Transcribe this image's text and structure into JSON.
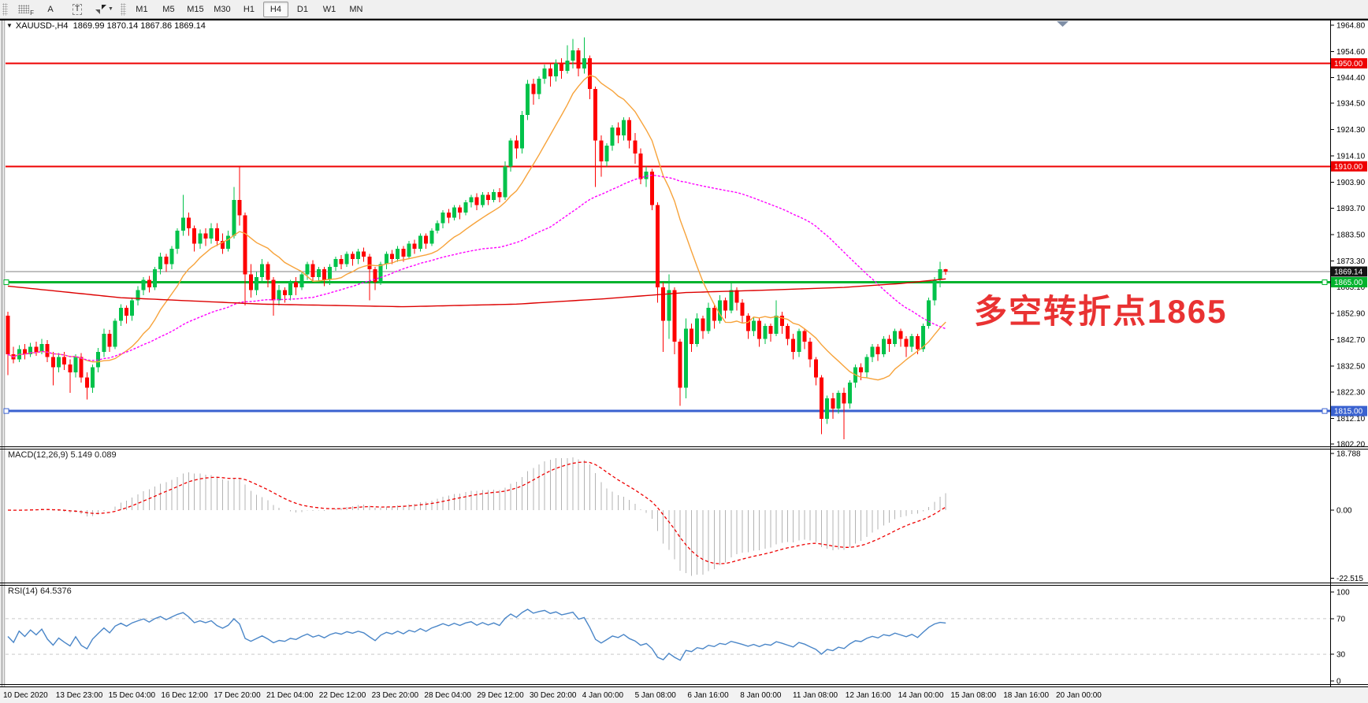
{
  "toolbar": {
    "dock_label": "F",
    "annotate_label": "A",
    "text_label": "T",
    "timeframes": [
      "M1",
      "M5",
      "M15",
      "M30",
      "H1",
      "H4",
      "D1",
      "W1",
      "MN"
    ],
    "active_timeframe": "H4"
  },
  "chart": {
    "title": "XAUUSD-,H4",
    "ohlc": "1869.99 1870.14 1867.86 1869.14",
    "annotation": "多空转折点1865",
    "y_ticks": [
      "1964.80",
      "1954.60",
      "1944.40",
      "1934.50",
      "1924.30",
      "1914.10",
      "1903.90",
      "1893.70",
      "1883.50",
      "1873.30",
      "1863.10",
      "1852.90",
      "1842.70",
      "1832.50",
      "1822.30",
      "1812.10",
      "1802.20"
    ],
    "x_labels": [
      "10 Dec 2020",
      "13 Dec 23:00",
      "15 Dec 04:00",
      "16 Dec 12:00",
      "17 Dec 20:00",
      "21 Dec 04:00",
      "22 Dec 12:00",
      "23 Dec 20:00",
      "28 Dec 04:00",
      "29 Dec 12:00",
      "30 Dec 20:00",
      "4 Jan 00:00",
      "5 Jan 08:00",
      "6 Jan 16:00",
      "8 Jan 00:00",
      "11 Jan 08:00",
      "12 Jan 16:00",
      "14 Jan 00:00",
      "15 Jan 08:00",
      "18 Jan 16:00",
      "20 Jan 00:00"
    ],
    "levels": [
      {
        "label": "1950.00",
        "value": 1950.0,
        "color": "#ee0000",
        "thickness": 2,
        "badge": "#ee0000",
        "handles": false
      },
      {
        "label": "1910.00",
        "value": 1910.0,
        "color": "#ee0000",
        "thickness": 2,
        "badge": "#ee0000",
        "handles": false
      },
      {
        "label": "1869.14",
        "value": 1869.14,
        "color": "#808080",
        "thickness": 1,
        "badge": "#141414",
        "handles": false
      },
      {
        "label": "1865.00",
        "value": 1865.0,
        "color": "#00b32d",
        "thickness": 3,
        "badge": "#00b32d",
        "handles": true
      },
      {
        "label": "1815.00",
        "value": 1815.0,
        "color": "#3a62d0",
        "thickness": 3,
        "badge": "#3a62d0",
        "handles": true
      }
    ]
  },
  "indicators": {
    "macd": {
      "label": "MACD(12,26,9) 5.149 0.089",
      "fast": 12,
      "slow": 26,
      "signal": 9,
      "ticks": [
        {
          "label": "18.788",
          "value": 18.788
        },
        {
          "label": "0.00",
          "value": 0
        },
        {
          "label": "-22.515",
          "value": -22.515
        }
      ]
    },
    "rsi": {
      "label": "RSI(14) 64.5376",
      "period": 14,
      "levels": [
        70,
        30
      ],
      "ticks": [
        {
          "label": "100",
          "value": 100
        },
        {
          "label": "70",
          "value": 70
        },
        {
          "label": "30",
          "value": 30
        },
        {
          "label": "0",
          "value": 0
        }
      ]
    }
  },
  "colors": {
    "bull": "#00c24a",
    "bear": "#fe0000",
    "ma_fast": "#f7a33b",
    "ma_mid": "#ff00ff",
    "ma_slow": "#dd0000",
    "macd_hist": "#b3b3b3",
    "macd_signal": "#ee0000",
    "rsi_line": "#4a86c8",
    "axis_text": "#000000",
    "annotation": "#e93232"
  },
  "chart_data": {
    "type": "candlestick",
    "symbol": "XAUUSD-",
    "timeframe": "H4",
    "ma_fast_period": 13,
    "ma_mid_period": 55,
    "ma_slow_points": [
      [
        0,
        1863.5
      ],
      [
        20,
        1859
      ],
      [
        45,
        1856.5
      ],
      [
        70,
        1855.5
      ],
      [
        90,
        1856.5
      ],
      [
        105,
        1858.5
      ],
      [
        120,
        1861
      ],
      [
        135,
        1862
      ],
      [
        148,
        1863
      ],
      [
        158,
        1864.5
      ],
      [
        166,
        1866.3
      ]
    ],
    "candles": [
      [
        1852,
        1853.5,
        1829,
        1837
      ],
      [
        1837,
        1840,
        1833.5,
        1835
      ],
      [
        1835,
        1840.5,
        1834,
        1839
      ],
      [
        1839,
        1841,
        1835,
        1837
      ],
      [
        1837,
        1841.5,
        1836,
        1840
      ],
      [
        1840,
        1842,
        1836.5,
        1838
      ],
      [
        1838,
        1843,
        1837,
        1841
      ],
      [
        1841,
        1842.5,
        1834,
        1836
      ],
      [
        1836,
        1838,
        1825,
        1832
      ],
      [
        1832,
        1837.5,
        1830,
        1836
      ],
      [
        1836,
        1838,
        1831,
        1833
      ],
      [
        1833,
        1835,
        1822,
        1830
      ],
      [
        1830,
        1837,
        1828,
        1836
      ],
      [
        1836,
        1837.5,
        1826,
        1828
      ],
      [
        1828,
        1830,
        1819.5,
        1824
      ],
      [
        1824,
        1833,
        1822,
        1832
      ],
      [
        1832,
        1839.5,
        1830,
        1838
      ],
      [
        1838,
        1847,
        1836,
        1845
      ],
      [
        1845,
        1846.5,
        1838,
        1840
      ],
      [
        1840,
        1851,
        1839,
        1850
      ],
      [
        1850,
        1856.5,
        1848,
        1855
      ],
      [
        1855,
        1856,
        1849,
        1852
      ],
      [
        1852,
        1859,
        1850,
        1858
      ],
      [
        1858,
        1863.5,
        1856,
        1862
      ],
      [
        1862,
        1867,
        1860,
        1866
      ],
      [
        1866,
        1867.5,
        1861,
        1863
      ],
      [
        1863,
        1871,
        1862,
        1870
      ],
      [
        1870,
        1876.5,
        1868,
        1875
      ],
      [
        1875,
        1876,
        1869,
        1872
      ],
      [
        1872,
        1879,
        1870,
        1878
      ],
      [
        1878,
        1886,
        1876,
        1885
      ],
      [
        1885,
        1899,
        1883,
        1890
      ],
      [
        1890,
        1892,
        1883,
        1886
      ],
      [
        1886,
        1887,
        1877,
        1880
      ],
      [
        1880,
        1885.5,
        1878,
        1884
      ],
      [
        1884,
        1886,
        1879,
        1882
      ],
      [
        1882,
        1888,
        1880,
        1886
      ],
      [
        1886,
        1888,
        1879,
        1881
      ],
      [
        1881,
        1884,
        1876,
        1878
      ],
      [
        1878,
        1885,
        1877,
        1883
      ],
      [
        1883,
        1902,
        1882,
        1897
      ],
      [
        1897,
        1910,
        1887,
        1891
      ],
      [
        1891,
        1892,
        1856,
        1868
      ],
      [
        1868,
        1872,
        1859,
        1862
      ],
      [
        1862,
        1869,
        1860,
        1867
      ],
      [
        1867,
        1874,
        1865,
        1872
      ],
      [
        1872,
        1873,
        1863,
        1866
      ],
      [
        1866,
        1867,
        1852,
        1858
      ],
      [
        1858,
        1864,
        1856,
        1862
      ],
      [
        1862,
        1863,
        1857,
        1860
      ],
      [
        1860,
        1866,
        1858,
        1865
      ],
      [
        1865,
        1867,
        1860,
        1863
      ],
      [
        1863,
        1869,
        1862,
        1868
      ],
      [
        1868,
        1873,
        1866,
        1872
      ],
      [
        1872,
        1873.5,
        1865,
        1867
      ],
      [
        1867,
        1871,
        1865.5,
        1870
      ],
      [
        1870,
        1871,
        1863.5,
        1866
      ],
      [
        1866,
        1872,
        1864,
        1871
      ],
      [
        1871,
        1875,
        1869.5,
        1874
      ],
      [
        1874,
        1875.5,
        1870,
        1872
      ],
      [
        1872,
        1877,
        1871,
        1876
      ],
      [
        1876,
        1877,
        1871.5,
        1874
      ],
      [
        1874,
        1878,
        1872,
        1877
      ],
      [
        1877,
        1878.5,
        1873,
        1875
      ],
      [
        1875,
        1876,
        1858,
        1870
      ],
      [
        1870,
        1871,
        1862,
        1865
      ],
      [
        1865,
        1873,
        1864,
        1872
      ],
      [
        1872,
        1877,
        1870,
        1876
      ],
      [
        1876,
        1877.5,
        1872,
        1874
      ],
      [
        1874,
        1879,
        1873,
        1878
      ],
      [
        1878,
        1879,
        1873,
        1875
      ],
      [
        1875,
        1881,
        1874,
        1880
      ],
      [
        1880,
        1881.5,
        1876,
        1878
      ],
      [
        1878,
        1884,
        1877,
        1883
      ],
      [
        1883,
        1884,
        1878,
        1880
      ],
      [
        1880,
        1886,
        1879,
        1885
      ],
      [
        1885,
        1889,
        1884,
        1888
      ],
      [
        1888,
        1893,
        1886,
        1892
      ],
      [
        1892,
        1893.5,
        1888,
        1890
      ],
      [
        1890,
        1895,
        1889,
        1894
      ],
      [
        1894,
        1895,
        1889.5,
        1892
      ],
      [
        1892,
        1897,
        1891,
        1896
      ],
      [
        1896,
        1899,
        1894,
        1898
      ],
      [
        1898,
        1899.5,
        1893,
        1895
      ],
      [
        1895,
        1900,
        1894,
        1899
      ],
      [
        1899,
        1900,
        1895,
        1897
      ],
      [
        1897,
        1901,
        1896,
        1900
      ],
      [
        1900,
        1901.5,
        1896,
        1898
      ],
      [
        1898,
        1912,
        1897,
        1910
      ],
      [
        1910,
        1921,
        1908,
        1920
      ],
      [
        1920,
        1922,
        1913,
        1917
      ],
      [
        1917,
        1931.5,
        1915,
        1930
      ],
      [
        1930,
        1943.5,
        1928,
        1942
      ],
      [
        1942,
        1944,
        1934,
        1938
      ],
      [
        1938,
        1945,
        1936,
        1944
      ],
      [
        1944,
        1949.5,
        1942,
        1948
      ],
      [
        1948,
        1950,
        1941,
        1945
      ],
      [
        1945,
        1951.5,
        1943,
        1950
      ],
      [
        1950,
        1952,
        1944,
        1947
      ],
      [
        1947,
        1957,
        1946,
        1951
      ],
      [
        1951,
        1959.5,
        1948,
        1955
      ],
      [
        1955,
        1956,
        1945,
        1948
      ],
      [
        1948,
        1960,
        1946,
        1952
      ],
      [
        1952,
        1953,
        1936,
        1940
      ],
      [
        1940,
        1941,
        1902,
        1920
      ],
      [
        1920,
        1922,
        1906,
        1912
      ],
      [
        1912,
        1919,
        1910,
        1918
      ],
      [
        1918,
        1926,
        1916,
        1925
      ],
      [
        1925,
        1927,
        1919,
        1922
      ],
      [
        1922,
        1929,
        1920,
        1928
      ],
      [
        1928,
        1929,
        1917,
        1920
      ],
      [
        1920,
        1923,
        1911,
        1915
      ],
      [
        1915,
        1917,
        1903,
        1905
      ],
      [
        1905,
        1910,
        1902,
        1908
      ],
      [
        1908,
        1909,
        1893,
        1895
      ],
      [
        1895,
        1896,
        1857,
        1863
      ],
      [
        1863,
        1865,
        1838,
        1850
      ],
      [
        1850,
        1868,
        1843,
        1862
      ],
      [
        1862,
        1863,
        1837,
        1842
      ],
      [
        1842,
        1843,
        1817,
        1824
      ],
      [
        1824,
        1851,
        1820,
        1847
      ],
      [
        1847,
        1849,
        1838,
        1841
      ],
      [
        1841,
        1853,
        1840,
        1851
      ],
      [
        1851,
        1852,
        1843,
        1846
      ],
      [
        1846,
        1857,
        1845,
        1855
      ],
      [
        1855,
        1856,
        1847,
        1850
      ],
      [
        1850,
        1860,
        1849,
        1858
      ],
      [
        1858,
        1859,
        1851,
        1854
      ],
      [
        1854,
        1864.5,
        1853,
        1862
      ],
      [
        1862,
        1863,
        1854,
        1857
      ],
      [
        1857,
        1858.5,
        1849,
        1852
      ],
      [
        1852,
        1853,
        1843,
        1846
      ],
      [
        1846,
        1851.5,
        1844,
        1850
      ],
      [
        1850,
        1851,
        1840,
        1843
      ],
      [
        1843,
        1849,
        1841,
        1848
      ],
      [
        1848,
        1849,
        1842,
        1845
      ],
      [
        1845,
        1858,
        1844,
        1852
      ],
      [
        1852,
        1853.5,
        1845,
        1848
      ],
      [
        1848,
        1849,
        1840.5,
        1843
      ],
      [
        1843,
        1845,
        1835,
        1838
      ],
      [
        1838,
        1847,
        1836,
        1846
      ],
      [
        1846,
        1847,
        1839,
        1842
      ],
      [
        1842,
        1843.5,
        1832,
        1835
      ],
      [
        1835,
        1836,
        1825,
        1828
      ],
      [
        1828,
        1829,
        1806,
        1812
      ],
      [
        1812,
        1821,
        1810,
        1820
      ],
      [
        1820,
        1822,
        1812,
        1816
      ],
      [
        1816,
        1823,
        1814,
        1822
      ],
      [
        1822,
        1824,
        1804,
        1818
      ],
      [
        1818,
        1827,
        1816,
        1826
      ],
      [
        1826,
        1833,
        1824,
        1832
      ],
      [
        1832,
        1833.5,
        1827,
        1830
      ],
      [
        1830,
        1837,
        1828,
        1836
      ],
      [
        1836,
        1841,
        1834,
        1840
      ],
      [
        1840,
        1841,
        1834.5,
        1837
      ],
      [
        1837,
        1844,
        1836,
        1843
      ],
      [
        1843,
        1844.5,
        1838,
        1841
      ],
      [
        1841,
        1847,
        1840,
        1846
      ],
      [
        1846,
        1847,
        1840,
        1843
      ],
      [
        1843,
        1844,
        1836,
        1840
      ],
      [
        1840,
        1845,
        1838,
        1844
      ],
      [
        1844,
        1845,
        1837,
        1839
      ],
      [
        1839,
        1849,
        1838,
        1848
      ],
      [
        1848,
        1859,
        1847,
        1858
      ],
      [
        1858,
        1867,
        1856,
        1866
      ],
      [
        1866,
        1873,
        1863,
        1870
      ],
      [
        1869.99,
        1870.14,
        1867.86,
        1869.14
      ]
    ]
  }
}
